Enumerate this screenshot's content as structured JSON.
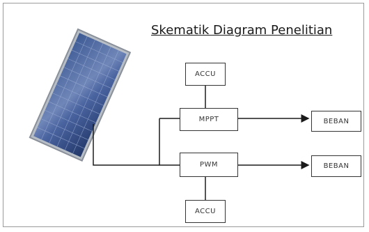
{
  "title": "Skematik Diagram Penelitian",
  "blocks": {
    "accu_top": "ACCU",
    "mppt": "MPPT",
    "pwm": "PWM",
    "accu_bottom": "ACCU",
    "beban_top": "BEBAN",
    "beban_bottom": "BEBAN"
  },
  "icons": {
    "solar_panel": "solar-panel-icon"
  },
  "colors": {
    "panel_frame": "#9aa3ad",
    "panel_cell": "#2f4a80",
    "line": "#1a1a1a"
  }
}
